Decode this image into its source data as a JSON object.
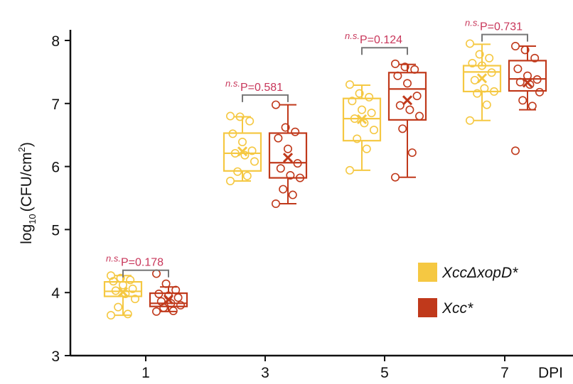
{
  "chart_data": {
    "type": "box",
    "xlabel": "DPI",
    "ylabel_main": "log",
    "ylabel_sub": "10",
    "ylabel_unit": "(CFU/cm",
    "ylabel_sup": "2",
    "ylabel_close": ")",
    "ylim": [
      3,
      8
    ],
    "yticks": [
      3,
      4,
      5,
      6,
      7,
      8
    ],
    "categories": [
      "1",
      "3",
      "5",
      "7"
    ],
    "colors": {
      "XccDxopD": "#f5c842",
      "Xcc": "#c0391b",
      "annotation": "#c8365a",
      "bracket": "#777777"
    },
    "series": [
      {
        "name": "XccΔxopD*",
        "boxes": [
          {
            "min": 3.64,
            "q1": 3.94,
            "median": 4.02,
            "q3": 4.17,
            "max": 4.27,
            "mean": 4.01,
            "points": [
              4.27,
              4.23,
              4.2,
              4.18,
              4.12,
              4.06,
              4.03,
              3.98,
              3.9,
              3.77,
              3.66,
              3.64
            ]
          },
          {
            "min": 5.77,
            "q1": 5.93,
            "median": 6.21,
            "q3": 6.53,
            "max": 6.79,
            "mean": 6.24,
            "points": [
              6.8,
              6.79,
              6.72,
              6.52,
              6.39,
              6.25,
              6.21,
              6.18,
              6.08,
              5.92,
              5.85,
              5.77
            ]
          },
          {
            "min": 5.94,
            "q1": 6.41,
            "median": 6.76,
            "q3": 7.08,
            "max": 7.29,
            "mean": 6.75,
            "points": [
              7.3,
              7.16,
              7.1,
              7.04,
              6.9,
              6.85,
              6.76,
              6.69,
              6.58,
              6.44,
              6.28,
              5.94
            ]
          },
          {
            "min": 6.73,
            "q1": 7.19,
            "median": 7.5,
            "q3": 7.6,
            "max": 7.94,
            "mean": 7.4,
            "points": [
              7.95,
              7.78,
              7.72,
              7.64,
              7.6,
              7.49,
              7.37,
              7.24,
              7.19,
              7.16,
              6.98,
              6.73
            ]
          }
        ]
      },
      {
        "name": "Xcc*",
        "boxes": [
          {
            "min": 3.7,
            "q1": 3.78,
            "median": 3.83,
            "q3": 3.99,
            "max": 4.09,
            "mean": 3.89,
            "points": [
              4.3,
              4.14,
              4.04,
              3.98,
              3.95,
              3.92,
              3.86,
              3.83,
              3.8,
              3.76,
              3.71,
              3.7
            ]
          },
          {
            "min": 5.41,
            "q1": 5.82,
            "median": 6.06,
            "q3": 6.53,
            "max": 6.98,
            "mean": 6.14,
            "points": [
              6.98,
              6.62,
              6.55,
              6.45,
              6.28,
              6.05,
              5.97,
              5.86,
              5.82,
              5.64,
              5.55,
              5.41
            ]
          },
          {
            "min": 5.83,
            "q1": 6.74,
            "median": 7.23,
            "q3": 7.49,
            "max": 7.62,
            "mean": 7.05,
            "points": [
              7.63,
              7.58,
              7.54,
              7.44,
              7.32,
              7.12,
              6.97,
              6.9,
              6.8,
              6.6,
              6.22,
              5.83
            ]
          },
          {
            "min": 6.9,
            "q1": 7.2,
            "median": 7.39,
            "q3": 7.68,
            "max": 7.91,
            "mean": 7.33,
            "points": [
              7.91,
              7.85,
              7.72,
              7.55,
              7.44,
              7.38,
              7.34,
              7.3,
              7.18,
              7.05,
              6.96,
              6.25
            ]
          }
        ]
      }
    ],
    "annotations": [
      {
        "prefix": "n.s.",
        "text": "P=0.178",
        "y": 4.49
      },
      {
        "prefix": "n.s.",
        "text": "P=0.581",
        "y": 7.27
      },
      {
        "prefix": "n.s.",
        "text": "P=0.124",
        "y": 8.02
      },
      {
        "prefix": "n.s.",
        "text": "P=0.731",
        "y": 8.23
      }
    ]
  }
}
